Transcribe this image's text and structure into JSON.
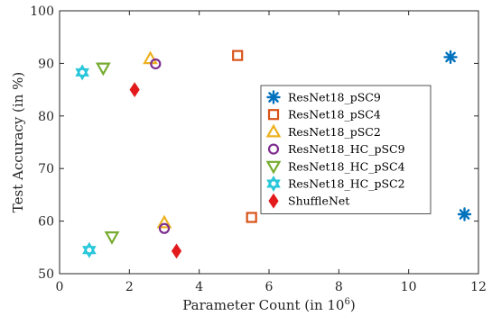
{
  "chart_data": {
    "type": "scatter",
    "xlabel_main": "Parameter Count (in 10",
    "xlabel_exp": "6",
    "xlabel_close": ")",
    "ylabel": "Test Accuracy (in %)",
    "xlim": [
      0,
      12
    ],
    "ylim": [
      50,
      100
    ],
    "xticks": [
      "0",
      "2",
      "4",
      "6",
      "8",
      "10",
      "12"
    ],
    "yticks": [
      "50",
      "60",
      "70",
      "80",
      "90",
      "100"
    ],
    "grid": false,
    "legend_position": "center-right",
    "series": [
      {
        "name": "ResNet18_pSC9",
        "marker": "asterisk",
        "color": "#0072BD",
        "points": [
          {
            "x": 11.2,
            "y": 91.2
          },
          {
            "x": 11.6,
            "y": 61.3
          }
        ]
      },
      {
        "name": "ResNet18_pSC4",
        "marker": "square",
        "color": "#D95319",
        "points": [
          {
            "x": 5.1,
            "y": 91.5
          },
          {
            "x": 5.5,
            "y": 60.7
          }
        ]
      },
      {
        "name": "ResNet18_pSC2",
        "marker": "triangle-up",
        "color": "#EDB120",
        "points": [
          {
            "x": 2.6,
            "y": 90.9
          },
          {
            "x": 3.0,
            "y": 59.7
          }
        ]
      },
      {
        "name": "ResNet18_HC_pSC9",
        "marker": "circle",
        "color": "#7E2F8E",
        "points": [
          {
            "x": 2.75,
            "y": 89.9
          },
          {
            "x": 3.0,
            "y": 58.6
          }
        ]
      },
      {
        "name": "ResNet18_HC_pSC4",
        "marker": "triangle-down",
        "color": "#77AC30",
        "points": [
          {
            "x": 1.25,
            "y": 89.1
          },
          {
            "x": 1.5,
            "y": 57.0
          }
        ]
      },
      {
        "name": "ResNet18_HC_pSC2",
        "marker": "hexagram",
        "color": "#26C6DA",
        "points": [
          {
            "x": 0.65,
            "y": 88.3
          },
          {
            "x": 0.85,
            "y": 54.5
          }
        ]
      },
      {
        "name": "ShuffleNet",
        "marker": "diamond",
        "color": "#E31A1C",
        "points": [
          {
            "x": 2.15,
            "y": 85.0
          },
          {
            "x": 3.35,
            "y": 54.3
          }
        ]
      }
    ]
  }
}
